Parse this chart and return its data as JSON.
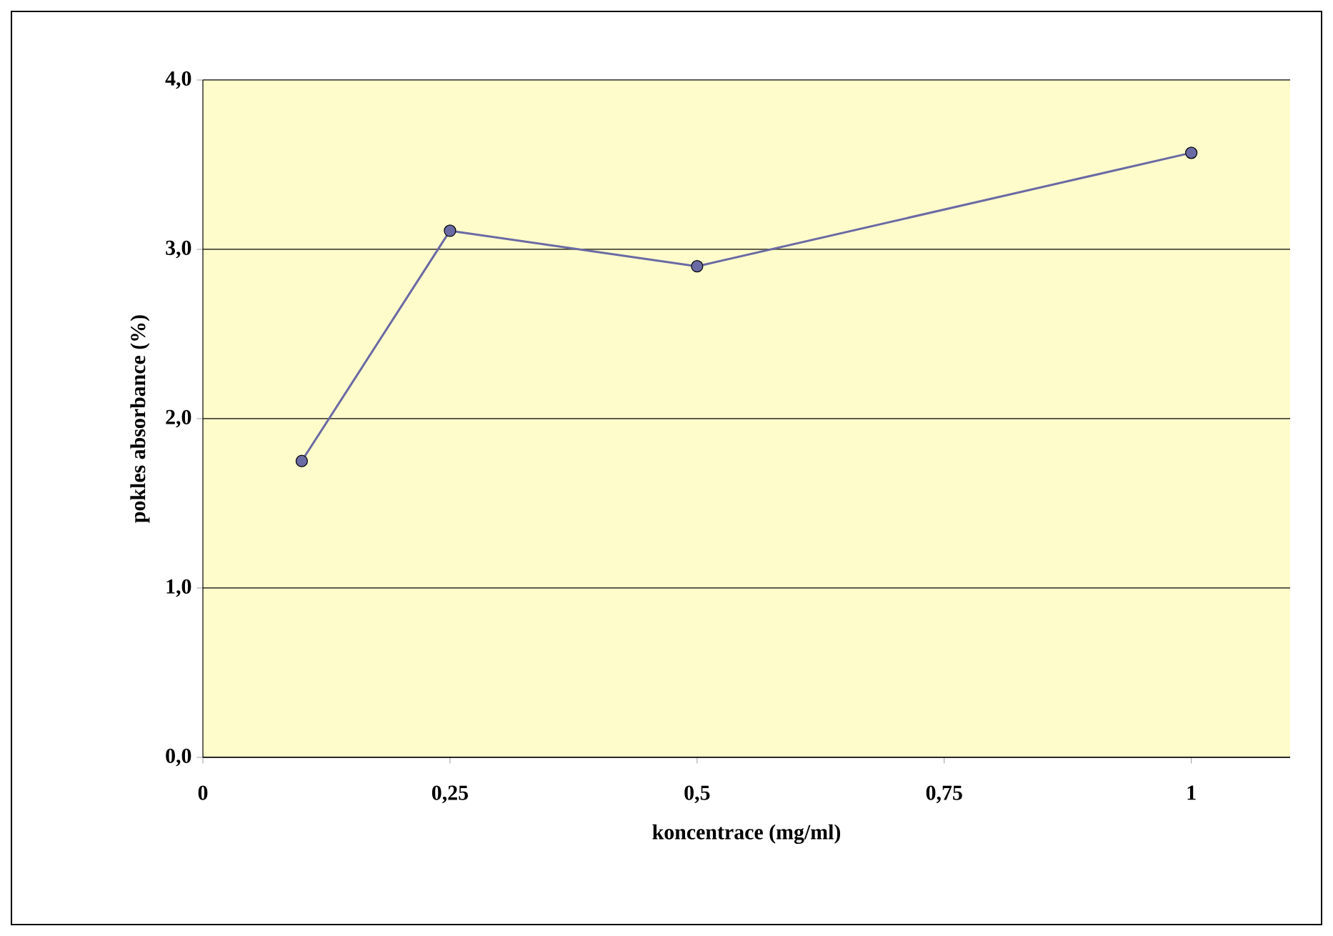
{
  "chart_data": {
    "type": "line",
    "xlabel": "koncentrace (mg/ml)",
    "ylabel": "pokles absorbance (%)",
    "x": [
      0.1,
      0.25,
      0.5,
      1
    ],
    "series": [
      {
        "color": "#6a6aa4",
        "values": [
          1.75,
          3.11,
          2.9,
          3.57
        ]
      }
    ],
    "xlim": [
      0,
      1.1
    ],
    "ylim": [
      0,
      4
    ],
    "xticks": [
      {
        "value": 0,
        "label": "0"
      },
      {
        "value": 0.25,
        "label": "0,25"
      },
      {
        "value": 0.5,
        "label": "0,5"
      },
      {
        "value": 0.75,
        "label": "0,75"
      },
      {
        "value": 1,
        "label": "1"
      }
    ],
    "yticks": [
      {
        "value": 0,
        "label": "0,0"
      },
      {
        "value": 1,
        "label": "1,0"
      },
      {
        "value": 2,
        "label": "2,0"
      },
      {
        "value": 3,
        "label": "3,0"
      },
      {
        "value": 4,
        "label": "4,0"
      }
    ],
    "grid": "y",
    "marker": "circle",
    "line_style": "solid"
  }
}
